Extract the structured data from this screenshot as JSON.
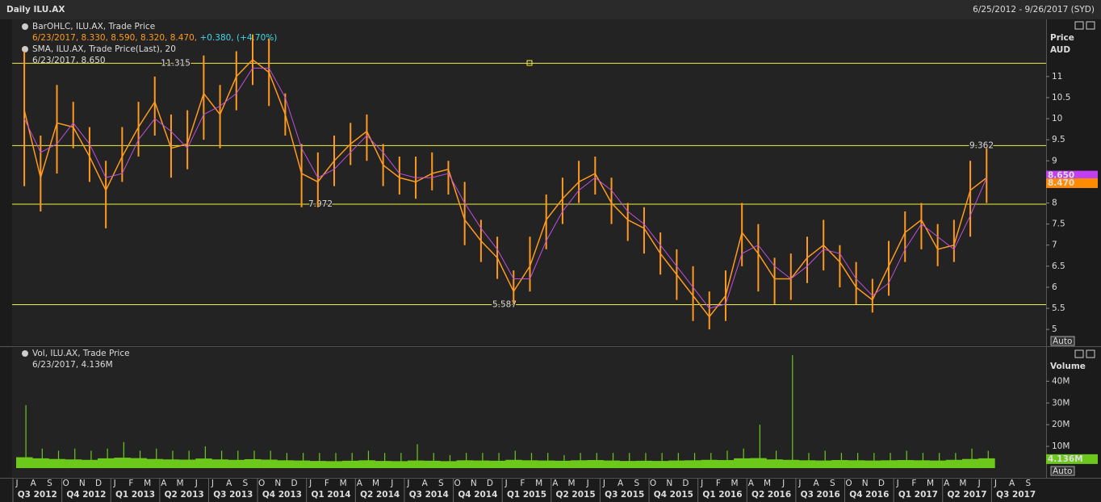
{
  "header": {
    "title": "Daily ILU.AX",
    "range": "6/25/2012 - 9/26/2017 (SYD)"
  },
  "chart_data": [
    {
      "type": "ohlc",
      "legend": [
        "BarOHLC, ILU.AX, Trade Price",
        "6/23/2017, 8.330, 8.590, 8.320, 8.470, ",
        "+0.380, (+4.70%)",
        "SMA, ILU.AX, Trade Price(Last),  20",
        "6/23/2017, 8.650"
      ],
      "y_label": "Price",
      "y_unit": "AUD",
      "scale_mode": "Auto",
      "xlim": [
        "2012-07",
        "2017-10"
      ],
      "x": [
        "2012-07",
        "2012-08",
        "2012-09",
        "2012-10",
        "2012-11",
        "2012-12",
        "2013-01",
        "2013-02",
        "2013-03",
        "2013-04",
        "2013-05",
        "2013-06",
        "2013-07",
        "2013-08",
        "2013-09",
        "2013-10",
        "2013-11",
        "2013-12",
        "2014-01",
        "2014-02",
        "2014-03",
        "2014-04",
        "2014-05",
        "2014-06",
        "2014-07",
        "2014-08",
        "2014-09",
        "2014-10",
        "2014-11",
        "2014-12",
        "2015-01",
        "2015-02",
        "2015-03",
        "2015-04",
        "2015-05",
        "2015-06",
        "2015-07",
        "2015-08",
        "2015-09",
        "2015-10",
        "2015-11",
        "2015-12",
        "2016-01",
        "2016-02",
        "2016-03",
        "2016-04",
        "2016-05",
        "2016-06",
        "2016-07",
        "2016-08",
        "2016-09",
        "2016-10",
        "2016-11",
        "2016-12",
        "2017-01",
        "2017-02",
        "2017-03",
        "2017-04",
        "2017-05",
        "2017-06"
      ],
      "series": [
        {
          "name": "Trade Price",
          "color": "#ff9a1f",
          "values": [
            10.2,
            8.6,
            9.9,
            9.8,
            9.1,
            8.3,
            9.1,
            9.8,
            10.4,
            9.3,
            9.4,
            10.6,
            10.1,
            11.0,
            11.4,
            11.1,
            10.1,
            8.7,
            8.5,
            9.0,
            9.4,
            9.7,
            8.9,
            8.6,
            8.5,
            8.7,
            8.8,
            7.6,
            7.1,
            6.7,
            5.9,
            6.5,
            7.6,
            8.1,
            8.5,
            8.7,
            8.0,
            7.6,
            7.4,
            6.8,
            6.3,
            5.8,
            5.3,
            5.8,
            7.3,
            6.8,
            6.2,
            6.2,
            6.7,
            7.0,
            6.6,
            6.0,
            5.7,
            6.5,
            7.3,
            7.6,
            6.9,
            7.0,
            8.3,
            8.6
          ],
          "high": [
            11.6,
            9.6,
            10.8,
            10.4,
            9.8,
            9.0,
            9.8,
            10.4,
            11.0,
            10.1,
            10.2,
            11.5,
            10.8,
            11.6,
            12.0,
            11.9,
            10.6,
            9.4,
            9.2,
            9.6,
            9.9,
            10.1,
            9.4,
            9.1,
            9.1,
            9.2,
            9.0,
            8.5,
            7.6,
            7.2,
            6.4,
            7.2,
            8.2,
            8.6,
            9.0,
            9.1,
            8.6,
            8.0,
            7.9,
            7.3,
            6.9,
            6.5,
            5.9,
            6.4,
            8.0,
            7.5,
            6.7,
            6.8,
            7.2,
            7.6,
            7.0,
            6.6,
            6.2,
            7.1,
            7.8,
            8.0,
            7.5,
            7.6,
            9.0,
            9.3
          ],
          "low": [
            8.4,
            7.8,
            8.7,
            9.3,
            8.5,
            7.4,
            8.5,
            9.1,
            9.6,
            8.6,
            8.8,
            9.5,
            9.3,
            10.2,
            10.8,
            10.3,
            9.6,
            7.9,
            7.9,
            8.4,
            8.9,
            9.0,
            8.4,
            8.2,
            8.1,
            8.3,
            8.2,
            7.0,
            6.6,
            6.2,
            5.6,
            5.9,
            6.9,
            7.5,
            8.0,
            8.2,
            7.5,
            7.1,
            6.8,
            6.3,
            5.7,
            5.2,
            5.0,
            5.2,
            6.5,
            5.9,
            5.6,
            5.7,
            6.1,
            6.4,
            6.0,
            5.6,
            5.4,
            5.8,
            6.6,
            6.9,
            6.5,
            6.6,
            7.2,
            8.0
          ]
        },
        {
          "name": "SMA 20",
          "color": "#c050e0",
          "values": [
            10.0,
            9.2,
            9.4,
            9.9,
            9.4,
            8.6,
            8.7,
            9.5,
            10.0,
            9.7,
            9.3,
            10.1,
            10.3,
            10.6,
            11.2,
            11.2,
            10.5,
            9.3,
            8.6,
            8.8,
            9.2,
            9.6,
            9.2,
            8.7,
            8.6,
            8.6,
            8.7,
            8.0,
            7.4,
            6.9,
            6.2,
            6.2,
            7.1,
            7.8,
            8.3,
            8.6,
            8.3,
            7.8,
            7.5,
            7.0,
            6.5,
            6.0,
            5.5,
            5.6,
            6.8,
            7.0,
            6.5,
            6.2,
            6.5,
            6.9,
            6.8,
            6.2,
            5.8,
            6.1,
            6.9,
            7.5,
            7.2,
            6.9,
            7.7,
            8.6
          ]
        }
      ],
      "levels": [
        11.315,
        9.362,
        7.972,
        5.587
      ],
      "level_color": "#f0f040",
      "last_values": [
        {
          "value": 8.65,
          "label": "8.650",
          "color": "#c040f0"
        },
        {
          "value": 8.47,
          "label": "8.470",
          "color": "#ff8c00"
        }
      ],
      "ylim": [
        4.62,
        12.05
      ],
      "yticks": [
        5,
        5.5,
        6,
        6.5,
        7,
        7.5,
        8,
        8.5,
        9,
        9.5,
        10,
        10.5,
        11
      ]
    },
    {
      "type": "bar",
      "legend": [
        "Vol, ILU.AX, Trade Price",
        "6/23/2017, 4.136M"
      ],
      "y_label": "Volume",
      "scale_mode": "Auto",
      "color": "#6cc81a",
      "xlim": [
        "2012-07",
        "2017-10"
      ],
      "x": [
        "2012-07",
        "2012-08",
        "2012-09",
        "2012-10",
        "2012-11",
        "2012-12",
        "2013-01",
        "2013-02",
        "2013-03",
        "2013-04",
        "2013-05",
        "2013-06",
        "2013-07",
        "2013-08",
        "2013-09",
        "2013-10",
        "2013-11",
        "2013-12",
        "2014-01",
        "2014-02",
        "2014-03",
        "2014-04",
        "2014-05",
        "2014-06",
        "2014-07",
        "2014-08",
        "2014-09",
        "2014-10",
        "2014-11",
        "2014-12",
        "2015-01",
        "2015-02",
        "2015-03",
        "2015-04",
        "2015-05",
        "2015-06",
        "2015-07",
        "2015-08",
        "2015-09",
        "2015-10",
        "2015-11",
        "2015-12",
        "2016-01",
        "2016-02",
        "2016-03",
        "2016-04",
        "2016-05",
        "2016-06",
        "2016-07",
        "2016-08",
        "2016-09",
        "2016-10",
        "2016-11",
        "2016-12",
        "2017-01",
        "2017-02",
        "2017-03",
        "2017-04",
        "2017-05",
        "2017-06"
      ],
      "values": [
        5000000,
        4500000,
        4200000,
        4000000,
        3800000,
        4500000,
        4800000,
        4600000,
        4200000,
        4000000,
        3900000,
        4400000,
        4000000,
        3800000,
        4100000,
        3900000,
        3600000,
        3500000,
        3300000,
        3200000,
        3400000,
        3600000,
        3300000,
        3200000,
        3500000,
        3400000,
        3200000,
        3600000,
        3500000,
        3400000,
        3800000,
        3600000,
        3500000,
        3400000,
        3600000,
        3700000,
        3500000,
        3300000,
        3400000,
        3300000,
        3500000,
        3600000,
        3800000,
        3700000,
        4500000,
        4600000,
        4000000,
        3800000,
        3600000,
        3500000,
        3700000,
        3600000,
        3500000,
        3600000,
        3700000,
        3600000,
        3500000,
        3800000,
        4200000,
        4500000
      ],
      "peaks": [
        29000000,
        9000000,
        8000000,
        9000000,
        8000000,
        9000000,
        12000000,
        8000000,
        9000000,
        8000000,
        8000000,
        10000000,
        8000000,
        8000000,
        8000000,
        8000000,
        7000000,
        7000000,
        7000000,
        7000000,
        7000000,
        8000000,
        7000000,
        7000000,
        11000000,
        7000000,
        6000000,
        7000000,
        7000000,
        7000000,
        8000000,
        7000000,
        7000000,
        6000000,
        7000000,
        7000000,
        7000000,
        7000000,
        7000000,
        7000000,
        7000000,
        7000000,
        7000000,
        8000000,
        9000000,
        20000000,
        8000000,
        52000000,
        7000000,
        8000000,
        7000000,
        7000000,
        7000000,
        7000000,
        8000000,
        7000000,
        7000000,
        7000000,
        9000000,
        8000000
      ],
      "last_value": {
        "value": 4136000,
        "label": "4.136M"
      },
      "ylim": [
        0,
        55000000
      ],
      "yticks": [
        {
          "value": 10000000,
          "label": "10M"
        },
        {
          "value": 20000000,
          "label": "20M"
        },
        {
          "value": 30000000,
          "label": "30M"
        },
        {
          "value": 40000000,
          "label": "40M"
        }
      ],
      "month_labels": [
        "J",
        "A",
        "S",
        "O",
        "N",
        "D",
        "J",
        "F",
        "M",
        "A",
        "M",
        "J",
        "J",
        "A",
        "S",
        "O",
        "N",
        "D",
        "J",
        "F",
        "M",
        "A",
        "M",
        "J",
        "J",
        "A",
        "S",
        "O",
        "N",
        "D",
        "J",
        "F",
        "M",
        "A",
        "M",
        "J",
        "J",
        "A",
        "S",
        "O",
        "N",
        "D",
        "J",
        "F",
        "M",
        "A",
        "M",
        "J",
        "J",
        "A",
        "S",
        "O",
        "N",
        "D",
        "J",
        "F",
        "M",
        "A",
        "M",
        "J",
        "J",
        "A",
        "S"
      ],
      "quarter_labels": [
        "Q3 2012",
        "Q4 2012",
        "Q1 2013",
        "Q2 2013",
        "Q3 2013",
        "Q4 2013",
        "Q1 2014",
        "Q2 2014",
        "Q3 2014",
        "Q4 2014",
        "Q1 2015",
        "Q2 2015",
        "Q3 2015",
        "Q4 2015",
        "Q1 2016",
        "Q2 2016",
        "Q3 2016",
        "Q4 2016",
        "Q1 2017",
        "Q2 2017",
        "Q3 2017"
      ]
    }
  ]
}
